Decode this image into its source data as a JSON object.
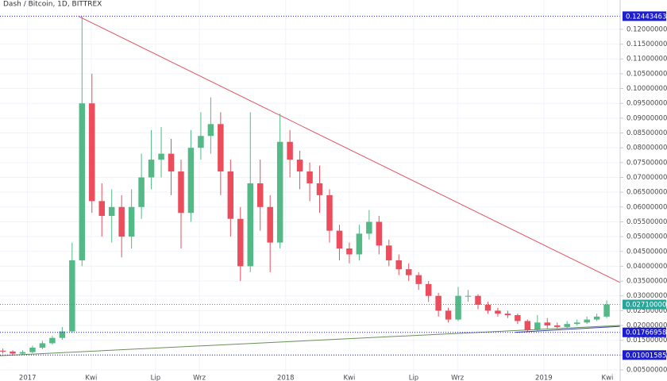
{
  "chart_data": {
    "type": "candlestick",
    "title": "Dash / Bitcoin, 1D, BITTREX",
    "x": [
      -35,
      -21,
      -7,
      7,
      21,
      35,
      49,
      63,
      77,
      91,
      105,
      119,
      133,
      147,
      161,
      175,
      189,
      203,
      217,
      231,
      245,
      259,
      273,
      287,
      301,
      315,
      329,
      343,
      357,
      371,
      385,
      399,
      413,
      427,
      441,
      455,
      469,
      483,
      497,
      511,
      525,
      539,
      553,
      567,
      581,
      595,
      609,
      623,
      637,
      651,
      665,
      679,
      693,
      707,
      721,
      735,
      749,
      763,
      777,
      791,
      805,
      819
    ],
    "open": [
      0.0115,
      0.0112,
      0.0105,
      0.011,
      0.0125,
      0.014,
      0.0158,
      0.018,
      0.042,
      0.095,
      0.062,
      0.057,
      0.06,
      0.05,
      0.06,
      0.07,
      0.076,
      0.078,
      0.072,
      0.058,
      0.08,
      0.084,
      0.088,
      0.072,
      0.056,
      0.04,
      0.068,
      0.06,
      0.048,
      0.082,
      0.076,
      0.072,
      0.068,
      0.064,
      0.052,
      0.046,
      0.044,
      0.051,
      0.055,
      0.047,
      0.042,
      0.039,
      0.037,
      0.034,
      0.03,
      0.025,
      0.022,
      0.03,
      0.03,
      0.027,
      0.025,
      0.024,
      0.0235,
      0.0215,
      0.0185,
      0.021,
      0.02,
      0.0195,
      0.0205,
      0.021,
      0.022,
      0.023
    ],
    "high": [
      0.0122,
      0.0116,
      0.0116,
      0.0132,
      0.0148,
      0.0165,
      0.0195,
      0.048,
      0.1244,
      0.105,
      0.068,
      0.066,
      0.064,
      0.066,
      0.078,
      0.086,
      0.087,
      0.083,
      0.076,
      0.086,
      0.092,
      0.097,
      0.092,
      0.076,
      0.06,
      0.092,
      0.076,
      0.064,
      0.0915,
      0.086,
      0.079,
      0.075,
      0.074,
      0.066,
      0.054,
      0.048,
      0.054,
      0.059,
      0.057,
      0.049,
      0.044,
      0.041,
      0.038,
      0.035,
      0.031,
      0.026,
      0.033,
      0.032,
      0.0305,
      0.028,
      0.026,
      0.025,
      0.024,
      0.022,
      0.0235,
      0.0225,
      0.021,
      0.0215,
      0.022,
      0.023,
      0.024,
      0.0285
    ],
    "low": [
      0.0105,
      0.0098,
      0.01,
      0.0106,
      0.012,
      0.0135,
      0.0152,
      0.0175,
      0.04,
      0.058,
      0.05,
      0.048,
      0.043,
      0.046,
      0.056,
      0.066,
      0.07,
      0.064,
      0.046,
      0.055,
      0.076,
      0.078,
      0.064,
      0.05,
      0.035,
      0.038,
      0.052,
      0.038,
      0.046,
      0.07,
      0.066,
      0.062,
      0.058,
      0.048,
      0.042,
      0.041,
      0.042,
      0.049,
      0.044,
      0.04,
      0.037,
      0.035,
      0.032,
      0.028,
      0.023,
      0.021,
      0.0215,
      0.028,
      0.0255,
      0.024,
      0.023,
      0.0225,
      0.0205,
      0.0177,
      0.018,
      0.019,
      0.0188,
      0.019,
      0.02,
      0.0205,
      0.0215,
      0.0225
    ],
    "close": [
      0.0112,
      0.0105,
      0.011,
      0.0125,
      0.014,
      0.0158,
      0.018,
      0.042,
      0.095,
      0.062,
      0.057,
      0.06,
      0.05,
      0.06,
      0.07,
      0.076,
      0.078,
      0.072,
      0.058,
      0.08,
      0.084,
      0.088,
      0.072,
      0.056,
      0.04,
      0.068,
      0.06,
      0.048,
      0.082,
      0.076,
      0.072,
      0.068,
      0.064,
      0.052,
      0.046,
      0.044,
      0.051,
      0.055,
      0.047,
      0.042,
      0.039,
      0.037,
      0.034,
      0.03,
      0.025,
      0.022,
      0.03,
      0.03,
      0.027,
      0.025,
      0.024,
      0.0235,
      0.0215,
      0.0185,
      0.021,
      0.02,
      0.0195,
      0.0205,
      0.021,
      0.022,
      0.023,
      0.0271
    ],
    "up_color": "#53b987",
    "down_color": "#eb4d5c",
    "xlim": [
      -39,
      838
    ],
    "xticks": [
      {
        "value": 0,
        "label": "2017"
      },
      {
        "value": 90,
        "label": "Kwi"
      },
      {
        "value": 181,
        "label": "Lip"
      },
      {
        "value": 243,
        "label": "Wrz"
      },
      {
        "value": 365,
        "label": "2018"
      },
      {
        "value": 455,
        "label": "Kwi"
      },
      {
        "value": 546,
        "label": "Lip"
      },
      {
        "value": 608,
        "label": "Wrz"
      },
      {
        "value": 730,
        "label": "2019"
      },
      {
        "value": 820,
        "label": "Kwi"
      }
    ],
    "ylim": [
      0.00125,
      0.1299
    ],
    "yticks": [
      {
        "value": 0.005,
        "label": "0.00500000"
      },
      {
        "value": 0.01,
        "label": "0.01000000"
      },
      {
        "value": 0.015,
        "label": "0.01500000"
      },
      {
        "value": 0.02,
        "label": "0.02000000"
      },
      {
        "value": 0.025,
        "label": "0.02500000"
      },
      {
        "value": 0.03,
        "label": "0.03000000"
      },
      {
        "value": 0.035,
        "label": "0.03500000"
      },
      {
        "value": 0.04,
        "label": "0.04000000"
      },
      {
        "value": 0.045,
        "label": "0.04500000"
      },
      {
        "value": 0.05,
        "label": "0.05000000"
      },
      {
        "value": 0.055,
        "label": "0.05500000"
      },
      {
        "value": 0.06,
        "label": "0.06000000"
      },
      {
        "value": 0.065,
        "label": "0.06500000"
      },
      {
        "value": 0.07,
        "label": "0.07000000"
      },
      {
        "value": 0.075,
        "label": "0.07500000"
      },
      {
        "value": 0.08,
        "label": "0.08000000"
      },
      {
        "value": 0.085,
        "label": "0.08500000"
      },
      {
        "value": 0.09,
        "label": "0.09000000"
      },
      {
        "value": 0.095,
        "label": "0.09500000"
      },
      {
        "value": 0.1,
        "label": "0.10000000"
      },
      {
        "value": 0.105,
        "label": "0.10500000"
      },
      {
        "value": 0.11,
        "label": "0.11000000"
      },
      {
        "value": 0.115,
        "label": "0.11500000"
      },
      {
        "value": 0.12,
        "label": "0.12000000"
      }
    ],
    "grid": true,
    "price_lines": [
      {
        "value": 0.12443463,
        "color": "#1c1cd0"
      },
      {
        "value": 0.0271,
        "label": "0.02710000",
        "color": "#26a69a"
      },
      {
        "value": 0.01766958,
        "color": "#1c1cd0"
      },
      {
        "value": 0.01001585,
        "color": "#1c1cd0"
      }
    ],
    "trend_lines": [
      {
        "x": [
          72,
          838
        ],
        "y": [
          0.1244,
          0.0345
        ],
        "color": "#e05563"
      },
      {
        "x": [
          -39,
          838
        ],
        "y": [
          0.0098,
          0.02
        ],
        "color": "#6b8e5a"
      },
      {
        "x": [
          690,
          838
        ],
        "y": [
          0.0177,
          0.0197
        ],
        "color": "#3344aa"
      }
    ]
  }
}
